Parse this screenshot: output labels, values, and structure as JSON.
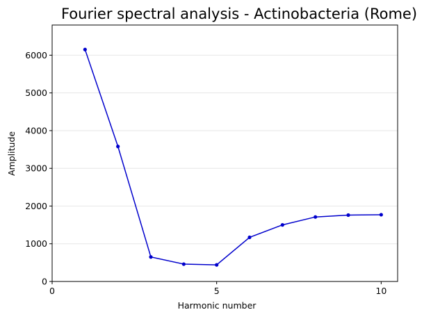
{
  "chart_data": {
    "type": "line",
    "title": "Fourier spectral analysis - Actinobacteria (Rome)",
    "xlabel": "Harmonic number",
    "ylabel": "Amplitude",
    "xlim": [
      0,
      10.5
    ],
    "ylim": [
      0,
      6800
    ],
    "xticks": [
      0,
      5,
      10
    ],
    "yticks": [
      0,
      1000,
      2000,
      3000,
      4000,
      5000,
      6000
    ],
    "grid": "horizontal",
    "series": [
      {
        "color": "#0000cc",
        "x": [
          1,
          2,
          3,
          4,
          5,
          6,
          7,
          8,
          9,
          10
        ],
        "y": [
          6150,
          3580,
          650,
          460,
          440,
          1170,
          1500,
          1710,
          1760,
          1770
        ]
      }
    ]
  }
}
